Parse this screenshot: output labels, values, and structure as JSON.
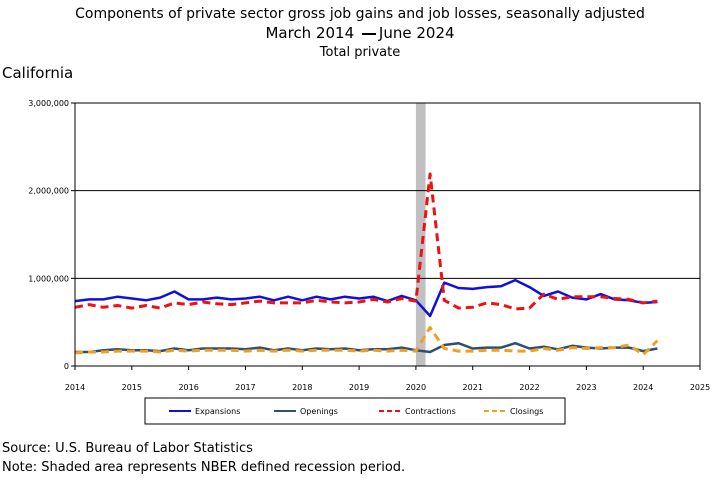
{
  "title": {
    "line1": "Components of private sector gross job gains and job losses, seasonally adjusted",
    "line2_start": "March 2014",
    "line2_end": "June 2024",
    "line3": "Total private"
  },
  "subtitle": "California",
  "footer": {
    "source": "Source: U.S. Bureau of Labor Statistics",
    "note": "Note: Shaded area represents NBER defined recession period."
  },
  "chart_data": {
    "type": "line",
    "x_ticks": [
      "2014",
      "2015",
      "2016",
      "2017",
      "2018",
      "2019",
      "2020",
      "2021",
      "2022",
      "2023",
      "2024",
      "2025"
    ],
    "y_ticks": [
      "0",
      "1,000,000",
      "2,000,000",
      "3,000,000"
    ],
    "ylim": [
      0,
      3000000
    ],
    "xlim": [
      2014.0,
      2025.0
    ],
    "recession": [
      2020.0,
      2020.17
    ],
    "grid": "horizontal",
    "legend_position": "bottom",
    "colors": {
      "expansions": "#1010dd",
      "openings": "#2f4f6f",
      "contractions": "#ee1111",
      "closings": "#f0a020",
      "recession": "#c0c0c0"
    },
    "x": [
      2014.0,
      2014.25,
      2014.5,
      2014.75,
      2015.0,
      2015.25,
      2015.5,
      2015.75,
      2016.0,
      2016.25,
      2016.5,
      2016.75,
      2017.0,
      2017.25,
      2017.5,
      2017.75,
      2018.0,
      2018.25,
      2018.5,
      2018.75,
      2019.0,
      2019.25,
      2019.5,
      2019.75,
      2020.0,
      2020.25,
      2020.5,
      2020.75,
      2021.0,
      2021.25,
      2021.5,
      2021.75,
      2022.0,
      2022.25,
      2022.5,
      2022.75,
      2023.0,
      2023.25,
      2023.5,
      2023.75,
      2024.0,
      2024.25
    ],
    "series": [
      {
        "name": "Expansions",
        "style": "solid",
        "values": [
          740000,
          760000,
          760000,
          790000,
          770000,
          750000,
          780000,
          850000,
          760000,
          760000,
          780000,
          760000,
          770000,
          790000,
          750000,
          790000,
          750000,
          790000,
          760000,
          790000,
          770000,
          790000,
          740000,
          800000,
          750000,
          570000,
          950000,
          890000,
          880000,
          900000,
          910000,
          980000,
          900000,
          800000,
          850000,
          780000,
          760000,
          820000,
          760000,
          750000,
          720000,
          730000
        ]
      },
      {
        "name": "Openings",
        "style": "solid",
        "values": [
          160000,
          160000,
          180000,
          190000,
          180000,
          180000,
          170000,
          200000,
          180000,
          200000,
          200000,
          200000,
          190000,
          210000,
          180000,
          200000,
          180000,
          200000,
          190000,
          200000,
          180000,
          190000,
          190000,
          210000,
          180000,
          160000,
          240000,
          260000,
          200000,
          210000,
          210000,
          260000,
          200000,
          220000,
          190000,
          230000,
          210000,
          200000,
          210000,
          210000,
          170000,
          200000
        ]
      },
      {
        "name": "Contractions",
        "style": "dashed",
        "values": [
          670000,
          700000,
          670000,
          690000,
          660000,
          690000,
          660000,
          720000,
          700000,
          730000,
          710000,
          700000,
          720000,
          740000,
          720000,
          720000,
          720000,
          750000,
          730000,
          720000,
          730000,
          760000,
          730000,
          770000,
          740000,
          2190000,
          750000,
          660000,
          670000,
          720000,
          700000,
          650000,
          660000,
          820000,
          760000,
          790000,
          790000,
          790000,
          770000,
          760000,
          720000,
          740000
        ]
      },
      {
        "name": "Closings",
        "style": "dashed",
        "values": [
          150000,
          160000,
          160000,
          170000,
          170000,
          170000,
          160000,
          180000,
          170000,
          180000,
          180000,
          180000,
          170000,
          180000,
          170000,
          180000,
          170000,
          180000,
          180000,
          180000,
          170000,
          180000,
          170000,
          180000,
          170000,
          440000,
          200000,
          170000,
          170000,
          180000,
          180000,
          170000,
          170000,
          200000,
          180000,
          210000,
          200000,
          210000,
          210000,
          240000,
          130000,
          290000
        ]
      }
    ]
  }
}
